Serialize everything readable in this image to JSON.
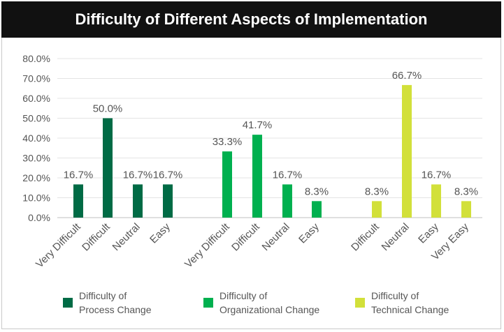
{
  "chart_data": {
    "type": "bar",
    "title": "Difficulty of Different Aspects of Implementation",
    "ylim": [
      0,
      80
    ],
    "yticks": [
      "0.0%",
      "10.0%",
      "20.0%",
      "30.0%",
      "40.0%",
      "50.0%",
      "60.0%",
      "70.0%",
      "80.0%"
    ],
    "grid": true,
    "legend_position": "bottom",
    "groups": [
      {
        "name": "Difficulty of Process Change",
        "legend_line1": "Difficulty of",
        "legend_line2": "Process Change",
        "color": "#006B45",
        "categories": [
          "Very Difficult",
          "Difficult",
          "Neutral",
          "Easy"
        ],
        "values": [
          16.7,
          50.0,
          16.7,
          16.7
        ],
        "labels": [
          "16.7%",
          "50.0%",
          "16.7%",
          "16.7%"
        ]
      },
      {
        "name": "Difficulty of Organizational Change",
        "legend_line1": "Difficulty of",
        "legend_line2": "Organizational Change",
        "color": "#00B04F",
        "categories": [
          "Very Difficult",
          "Difficult",
          "Neutral",
          "Easy"
        ],
        "values": [
          33.3,
          41.7,
          16.7,
          8.3
        ],
        "labels": [
          "33.3%",
          "41.7%",
          "16.7%",
          "8.3%"
        ]
      },
      {
        "name": "Difficulty of Technical Change",
        "legend_line1": "Difficulty of",
        "legend_line2": "Technical Change",
        "color": "#D2E03A",
        "categories": [
          "Difficult",
          "Neutral",
          "Easy",
          "Very Easy"
        ],
        "values": [
          8.3,
          66.7,
          16.7,
          8.3
        ],
        "labels": [
          "8.3%",
          "66.7%",
          "16.7%",
          "8.3%"
        ]
      }
    ]
  }
}
